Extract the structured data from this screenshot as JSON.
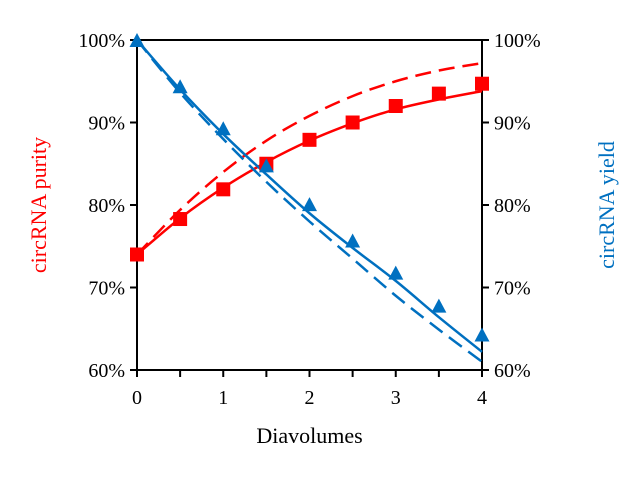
{
  "chart_data": {
    "type": "scatter",
    "title": "",
    "xlabel": "Diavolumes",
    "ylabel_left": "circRNA purity",
    "ylabel_right": "circRNA yield",
    "xlim": [
      0,
      4
    ],
    "ylim_left": [
      60,
      100
    ],
    "ylim_right": [
      60,
      100
    ],
    "x_ticks": [
      "0",
      "1",
      "2",
      "3",
      "4"
    ],
    "y_ticks_left": [
      "60%",
      "70%",
      "80%",
      "90%",
      "100%"
    ],
    "y_ticks_right": [
      "60%",
      "70%",
      "80%",
      "90%",
      "100%"
    ],
    "grid": false,
    "colors": {
      "purity": "#ff0000",
      "yield": "#0070c0",
      "axis": "#000000"
    },
    "series": [
      {
        "name": "circRNA purity (measured)",
        "kind": "markers",
        "marker": "square",
        "color": "#ff0000",
        "axis": "left",
        "x": [
          0,
          0.5,
          1,
          1.5,
          2,
          2.5,
          3,
          3.5,
          4
        ],
        "values": [
          74.0,
          78.3,
          81.9,
          85.0,
          87.9,
          90.0,
          92.0,
          93.5,
          94.7
        ]
      },
      {
        "name": "circRNA purity (model, solid)",
        "kind": "line",
        "dash": "solid",
        "color": "#ff0000",
        "axis": "left",
        "x": [
          0,
          0.5,
          1,
          1.5,
          2,
          2.5,
          3,
          3.5,
          4
        ],
        "values": [
          74.0,
          78.4,
          82.1,
          85.2,
          87.8,
          89.9,
          91.6,
          92.8,
          93.8
        ]
      },
      {
        "name": "circRNA purity (model, dashed)",
        "kind": "line",
        "dash": "dashed",
        "color": "#ff0000",
        "axis": "left",
        "x": [
          0,
          0.5,
          1,
          1.5,
          2,
          2.5,
          3,
          3.5,
          4
        ],
        "values": [
          74.0,
          79.4,
          84.0,
          87.8,
          90.8,
          93.2,
          95.0,
          96.3,
          97.2
        ]
      },
      {
        "name": "circRNA yield (measured)",
        "kind": "markers",
        "marker": "triangle",
        "color": "#0070c0",
        "axis": "right",
        "x": [
          0,
          0.5,
          1,
          1.5,
          2,
          2.5,
          3,
          3.5,
          4
        ],
        "values": [
          100.0,
          94.4,
          89.3,
          84.8,
          80.1,
          75.7,
          71.8,
          67.8,
          64.3
        ]
      },
      {
        "name": "circRNA yield (model, solid)",
        "kind": "line",
        "dash": "solid",
        "color": "#0070c0",
        "axis": "right",
        "x": [
          0,
          0.5,
          1,
          1.5,
          2,
          2.5,
          3,
          3.5,
          4
        ],
        "values": [
          100.0,
          94.0,
          88.6,
          83.7,
          79.0,
          74.8,
          70.8,
          66.4,
          62.2
        ]
      },
      {
        "name": "circRNA yield (model, dashed)",
        "kind": "line",
        "dash": "dashed",
        "color": "#0070c0",
        "axis": "right",
        "x": [
          0,
          0.5,
          1,
          1.5,
          2,
          2.5,
          3,
          3.5,
          4
        ],
        "values": [
          100.0,
          93.6,
          88.0,
          82.8,
          78.0,
          73.5,
          69.0,
          64.9,
          61.0
        ]
      }
    ]
  }
}
